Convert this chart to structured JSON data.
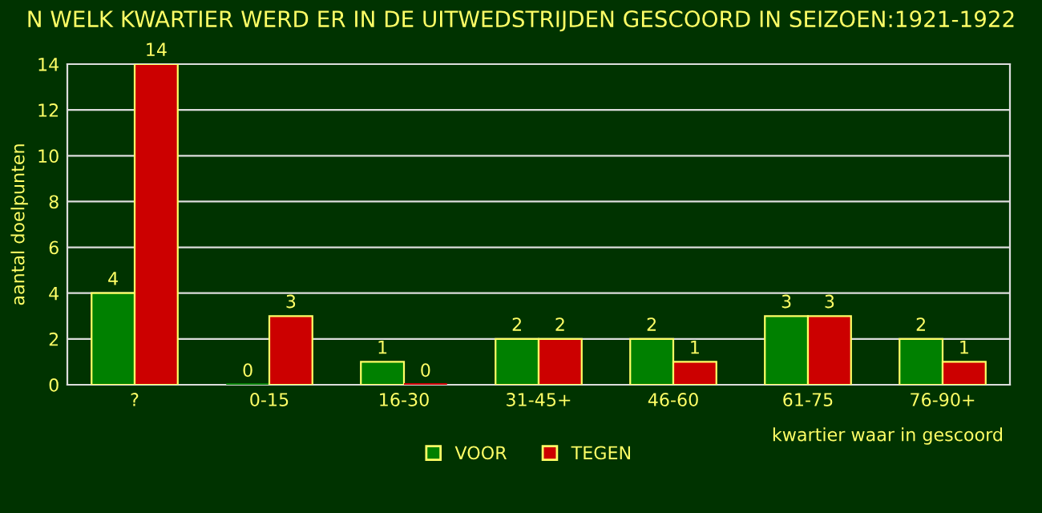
{
  "chart_data": {
    "type": "bar",
    "title": "N WELK KWARTIER WERD ER IN DE UITWEDSTRIJDEN GESCOORD IN SEIZOEN:1921-1922",
    "xlabel": "kwartier waar in gescoord",
    "ylabel": "aantal doelpunten",
    "categories": [
      "?",
      "0-15",
      "16-30",
      "31-45+",
      "46-60",
      "61-75",
      "76-90+"
    ],
    "series": [
      {
        "name": "VOOR",
        "color": "#008000",
        "values": [
          4,
          0,
          1,
          2,
          2,
          3,
          2
        ]
      },
      {
        "name": "TEGEN",
        "color": "#cc0000",
        "values": [
          14,
          3,
          0,
          2,
          1,
          3,
          1
        ]
      }
    ],
    "ylim": [
      0,
      14
    ],
    "yticks": [
      0,
      2,
      4,
      6,
      8,
      10,
      12,
      14
    ],
    "grid": "y",
    "legend": "bottom",
    "data_labels": true
  }
}
